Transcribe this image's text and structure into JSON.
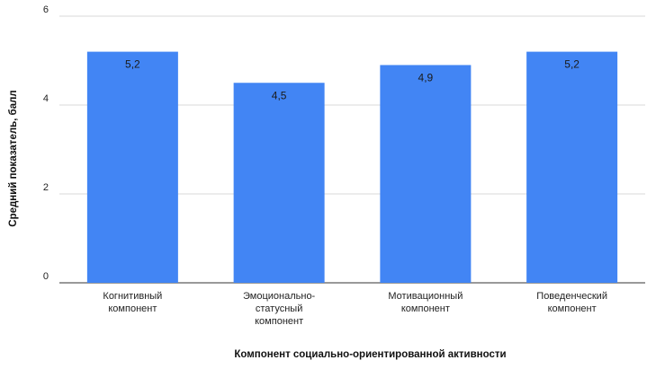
{
  "chart_data": {
    "type": "bar",
    "categories": [
      [
        "Когнитивный",
        "компонент"
      ],
      [
        "Эмоционально-",
        "статусный",
        "компонент"
      ],
      [
        "Мотивационный",
        "компонент"
      ],
      [
        "Поведенческий",
        "компонент"
      ]
    ],
    "values": [
      5.2,
      4.5,
      4.9,
      5.2
    ],
    "data_labels": [
      "5,2",
      "4,5",
      "4,9",
      "5,2"
    ],
    "title": "",
    "xlabel": "Компонент социально-ориентированной активности",
    "ylabel": "Средний показатель, балл",
    "ylim": [
      0,
      6
    ],
    "yticks": [
      0,
      2,
      4,
      6
    ],
    "grid": true,
    "legend": "none",
    "bar_color": "#4285f4"
  }
}
